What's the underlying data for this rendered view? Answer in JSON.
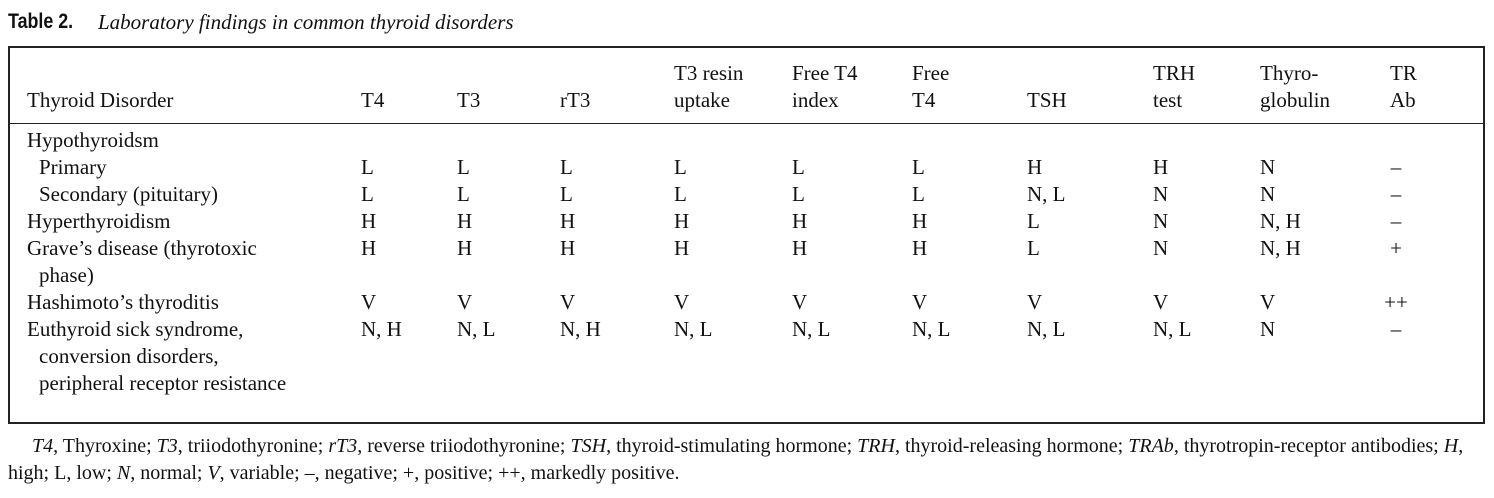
{
  "title": {
    "label": "Table 2.",
    "caption": "Laboratory findings in common thyroid disorders"
  },
  "table": {
    "columns": [
      [
        "Thyroid Disorder"
      ],
      [
        "T4"
      ],
      [
        "T3"
      ],
      [
        "rT3"
      ],
      [
        "T3 resin",
        "uptake"
      ],
      [
        "Free T4",
        "index"
      ],
      [
        "Free",
        "T4"
      ],
      [
        "TSH"
      ],
      [
        "TRH",
        "test"
      ],
      [
        "Thyro-",
        "globulin"
      ],
      [
        "TR",
        "Ab"
      ]
    ],
    "rows": [
      {
        "label": [
          "Hypothyroidsm"
        ],
        "indent": 0
      },
      {
        "label": [
          "Primary"
        ],
        "indent": 1,
        "values": [
          "L",
          "L",
          "L",
          "L",
          "L",
          "L",
          "H",
          "H",
          "N",
          "–"
        ]
      },
      {
        "label": [
          "Secondary (pituitary)"
        ],
        "indent": 1,
        "values": [
          "L",
          "L",
          "L",
          "L",
          "L",
          "L",
          "N, L",
          "N",
          "N",
          "–"
        ]
      },
      {
        "label": [
          "Hyperthyroidism"
        ],
        "indent": 0,
        "values": [
          "H",
          "H",
          "H",
          "H",
          "H",
          "H",
          "L",
          "N",
          "N, H",
          "–"
        ]
      },
      {
        "label": [
          "Grave’s disease (thyrotoxic",
          "phase)"
        ],
        "indent": 0,
        "values": [
          "H",
          "H",
          "H",
          "H",
          "H",
          "H",
          "L",
          "N",
          "N, H",
          "+"
        ]
      },
      {
        "label": [
          "Hashimoto’s thyroditis"
        ],
        "indent": 0,
        "values": [
          "V",
          "V",
          "V",
          "V",
          "V",
          "V",
          "V",
          "V",
          "V",
          "++"
        ]
      },
      {
        "label": [
          "Euthyroid sick syndrome,",
          "conversion disorders,",
          "peripheral receptor resistance"
        ],
        "indent": 0,
        "values": [
          "N, H",
          "N, L",
          "N, H",
          "N, L",
          "N, L",
          "N, L",
          "N, L",
          "N, L",
          "N",
          "–"
        ]
      }
    ]
  },
  "footnote": [
    {
      "text": "T4",
      "italic": true
    },
    {
      "text": ", Thyroxine; "
    },
    {
      "text": "T3",
      "italic": true
    },
    {
      "text": ", triiodothyronine; "
    },
    {
      "text": "rT3",
      "italic": true
    },
    {
      "text": ", reverse triiodothyronine; "
    },
    {
      "text": "TSH",
      "italic": true
    },
    {
      "text": ", thyroid-stimulating hormone; "
    },
    {
      "text": "TRH",
      "italic": true
    },
    {
      "text": ", thyroid-releasing hormone; "
    },
    {
      "text": "TRAb",
      "italic": true
    },
    {
      "text": ", thyrotropin-receptor antibodies; "
    },
    {
      "text": "H",
      "italic": true
    },
    {
      "text": ", high; L, low; "
    },
    {
      "text": "N",
      "italic": true
    },
    {
      "text": ", normal; "
    },
    {
      "text": "V",
      "italic": true
    },
    {
      "text": ", variable; –, negative; +, positive; ++,  markedly positive."
    }
  ]
}
